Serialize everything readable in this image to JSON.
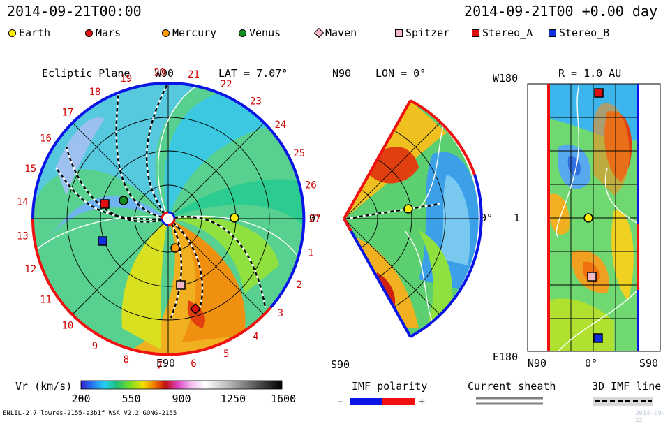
{
  "header": {
    "left_title": "2014-09-21T00:00",
    "right_title": "2014-09-21T00 +0.00 day"
  },
  "legend": [
    {
      "name": "Earth",
      "shape": "circle",
      "color": "#ffee00"
    },
    {
      "name": "Mars",
      "shape": "circle",
      "color": "#e01010"
    },
    {
      "name": "Mercury",
      "shape": "circle",
      "color": "#ff9900"
    },
    {
      "name": "Venus",
      "shape": "circle",
      "color": "#109020"
    },
    {
      "name": "Maven",
      "shape": "diamond",
      "color": "#f4b8c4"
    },
    {
      "name": "Spitzer",
      "shape": "square",
      "color": "#f4b8c4"
    },
    {
      "name": "Stereo_A",
      "shape": "square",
      "color": "#e01010"
    },
    {
      "name": "Stereo_B",
      "shape": "square",
      "color": "#1030e0"
    }
  ],
  "panels": {
    "ecliptic": {
      "title": "Ecliptic Plane",
      "lat_label": "LAT = 7.07°",
      "top_label": "W90",
      "bottom_label": "E90",
      "right_label": "0°",
      "carrington": [
        "1",
        "2",
        "3",
        "4",
        "5",
        "6",
        "7",
        "8",
        "9",
        "10",
        "11",
        "12",
        "13",
        "14",
        "15",
        "16",
        "17",
        "18",
        "19",
        "20",
        "21",
        "22",
        "23",
        "24",
        "25",
        "26",
        "27"
      ]
    },
    "meridional": {
      "lon_label": "LON = 0°",
      "top_label": "N90",
      "bottom_label": "S90",
      "right_label": "0°"
    },
    "radial": {
      "r_label": "R = 1.0 AU",
      "top_left": "W180",
      "bottom_left": "E180",
      "mid_left": "1",
      "bottom_n": "N90",
      "bottom_mid": "0°",
      "bottom_s": "S90"
    }
  },
  "colorbar": {
    "label": "Vr (km/s)",
    "ticks": [
      "200",
      "550",
      "900",
      "1250",
      "1600"
    ]
  },
  "imf": {
    "label": "IMF polarity",
    "minus": "−",
    "plus": "+",
    "neg_color": "#0a14e6",
    "pos_color": "#f01010"
  },
  "current_sheath": {
    "label": "Current sheath"
  },
  "imf3d": {
    "label": "3D IMF line"
  },
  "footer": {
    "left": "ENLIL-2.7 lowres-2155-a3b1f WSA_V2.2 GONG-2155",
    "right": "2014-09-22"
  },
  "chart_data": [
    {
      "type": "heatmap",
      "title": "Ecliptic Plane",
      "quantity": "Vr (km/s)",
      "range": [
        200,
        1600
      ],
      "bodies": [
        {
          "name": "Earth",
          "lon_deg": 0,
          "r_au": 1.0
        },
        {
          "name": "Mars"
        },
        {
          "name": "Mercury"
        },
        {
          "name": "Venus"
        },
        {
          "name": "Maven"
        },
        {
          "name": "Spitzer"
        },
        {
          "name": "Stereo_A"
        },
        {
          "name": "Stereo_B"
        }
      ]
    },
    {
      "type": "heatmap",
      "title": "LON = 0°",
      "quantity": "Vr (km/s)"
    },
    {
      "type": "heatmap",
      "title": "R = 1.0 AU",
      "quantity": "Vr (km/s)"
    }
  ]
}
